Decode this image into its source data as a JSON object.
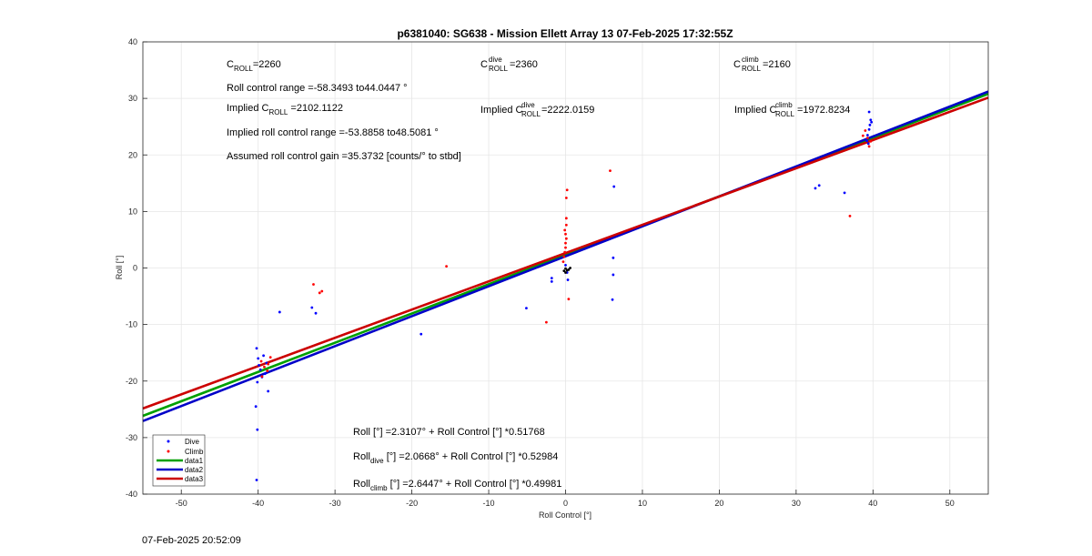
{
  "chart_data": {
    "type": "scatter",
    "title": "p6381040: SG638 - Mission Ellett Array 13 07-Feb-2025 17:32:55Z",
    "xlabel": "Roll Control [°]",
    "ylabel": "Roll [°]",
    "xlim": [
      -55,
      55
    ],
    "ylim": [
      -40,
      40
    ],
    "xticks": [
      "-50",
      "-40",
      "-30",
      "-20",
      "-10",
      "0",
      "10",
      "20",
      "30",
      "40",
      "50"
    ],
    "yticks": [
      "-40",
      "-30",
      "-20",
      "-10",
      "0",
      "10",
      "20",
      "30",
      "40"
    ],
    "grid": true,
    "legend_position": "bottom-left",
    "series": [
      {
        "name": "Dive",
        "kind": "points",
        "color": "#0000ff",
        "points": [
          [
            -40.2,
            -14.2
          ],
          [
            -40,
            -16
          ],
          [
            -39.9,
            -17.2
          ],
          [
            -39.7,
            -18
          ],
          [
            -39.5,
            -19.3
          ],
          [
            -40.1,
            -20.2
          ],
          [
            -39.3,
            -15.5
          ],
          [
            -38.9,
            -16.8
          ],
          [
            -39.1,
            -18.7
          ],
          [
            -40.3,
            -24.5
          ],
          [
            -40.1,
            -28.6
          ],
          [
            -40.2,
            -37.5
          ],
          [
            -38.7,
            -21.8
          ],
          [
            -37.2,
            -7.8
          ],
          [
            -33,
            -7
          ],
          [
            -32.5,
            -8
          ],
          [
            -18.8,
            -11.7
          ],
          [
            -5.1,
            -7.1
          ],
          [
            -1.8,
            -1.8
          ],
          [
            -1.8,
            -2.4
          ],
          [
            0,
            0.5
          ],
          [
            0.2,
            -0.8
          ],
          [
            0.3,
            -2.1
          ],
          [
            6.3,
            14.4
          ],
          [
            6.2,
            1.8
          ],
          [
            6.2,
            -1.2
          ],
          [
            6.1,
            -5.6
          ],
          [
            32.5,
            14.1
          ],
          [
            33,
            14.6
          ],
          [
            36.3,
            13.3
          ],
          [
            39.2,
            22.5
          ],
          [
            39.3,
            23.5
          ],
          [
            39.5,
            24.5
          ],
          [
            39.6,
            25.3
          ],
          [
            39.8,
            25.8
          ],
          [
            39.5,
            27.6
          ],
          [
            39.7,
            26.2
          ],
          [
            39.4,
            22
          ]
        ]
      },
      {
        "name": "Climb",
        "kind": "points",
        "color": "#ff0000",
        "points": [
          [
            -39.6,
            -16.5
          ],
          [
            -39.2,
            -17.5
          ],
          [
            -38.8,
            -18.2
          ],
          [
            -39.5,
            -19.2
          ],
          [
            -38.4,
            -15.8
          ],
          [
            -38.7,
            -17
          ],
          [
            -32.8,
            -2.9
          ],
          [
            -32,
            -4.4
          ],
          [
            -31.7,
            -4.1
          ],
          [
            -15.5,
            0.3
          ],
          [
            -2.5,
            -9.6
          ],
          [
            -0.3,
            1.1
          ],
          [
            -0.2,
            2
          ],
          [
            -0.1,
            2.8
          ],
          [
            0,
            3.6
          ],
          [
            0,
            4.4
          ],
          [
            0.1,
            5.2
          ],
          [
            0,
            6
          ],
          [
            -0.1,
            6.7
          ],
          [
            0.1,
            7.6
          ],
          [
            0.1,
            8.8
          ],
          [
            0.1,
            12.4
          ],
          [
            0.2,
            13.8
          ],
          [
            0.4,
            -5.5
          ],
          [
            5.8,
            17.2
          ],
          [
            37,
            9.2
          ],
          [
            38.7,
            23.4
          ],
          [
            39,
            24.3
          ],
          [
            39.3,
            23
          ],
          [
            39.7,
            22.4
          ],
          [
            39.5,
            21.5
          ]
        ]
      },
      {
        "name": "",
        "kind": "points",
        "color": "#000000",
        "points": [
          [
            -0.2,
            -0.5
          ],
          [
            0,
            -0.1
          ],
          [
            0.2,
            -0.4
          ],
          [
            0.4,
            -0.3
          ],
          [
            0,
            -0.8
          ],
          [
            0.6,
            0
          ]
        ]
      },
      {
        "name": "data1",
        "kind": "line",
        "color": "#00a000",
        "x": [
          -55,
          55
        ],
        "y": [
          -26.16,
          30.79
        ]
      },
      {
        "name": "data2",
        "kind": "line",
        "color": "#0000c8",
        "x": [
          -55,
          55
        ],
        "y": [
          -27.07,
          31.21
        ]
      },
      {
        "name": "data3",
        "kind": "line",
        "color": "#cc0000",
        "x": [
          -55,
          55
        ],
        "y": [
          -24.85,
          30.13
        ]
      }
    ],
    "annotations": {
      "c_roll": {
        "main": "C",
        "sub": "ROLL",
        "rest": "=2260"
      },
      "roll_range": "Roll control range =-58.3493 to44.0447 °",
      "implied_c_roll": {
        "pre": "Implied C",
        "sub": "ROLL",
        "rest": " =2102.1122"
      },
      "implied_range": "Implied roll control range =-53.8858 to48.5081 °",
      "gain": "Assumed roll control gain =35.3732 [counts/° to stbd]",
      "c_roll_dive": {
        "main": "C",
        "sup": "dive",
        "sub": "ROLL",
        "rest": " =2360"
      },
      "implied_c_roll_dive": {
        "pre": "Implied C",
        "sup": "dive",
        "sub": "ROLL",
        "rest": " =2222.0159"
      },
      "c_roll_climb": {
        "main": "C",
        "sup": "climb",
        "sub": "ROLL",
        "rest": " =2160"
      },
      "implied_c_roll_climb": {
        "pre": "Implied C",
        "sup": "climb",
        "sub": "ROLL",
        "rest": " =1972.8234"
      },
      "eq_all": "Roll [°] =2.3107° + Roll Control [°] *0.51768",
      "eq_dive": {
        "pre": "Roll",
        "sub": "dive",
        "rest": " [°] =2.0668° + Roll Control [°] *0.52984"
      },
      "eq_climb": {
        "pre": "Roll",
        "sub": "climb",
        "rest": " [°] =2.6447° + Roll Control [°] *0.49981"
      }
    }
  },
  "footer": {
    "timestamp": "07-Feb-2025 20:52:09"
  }
}
